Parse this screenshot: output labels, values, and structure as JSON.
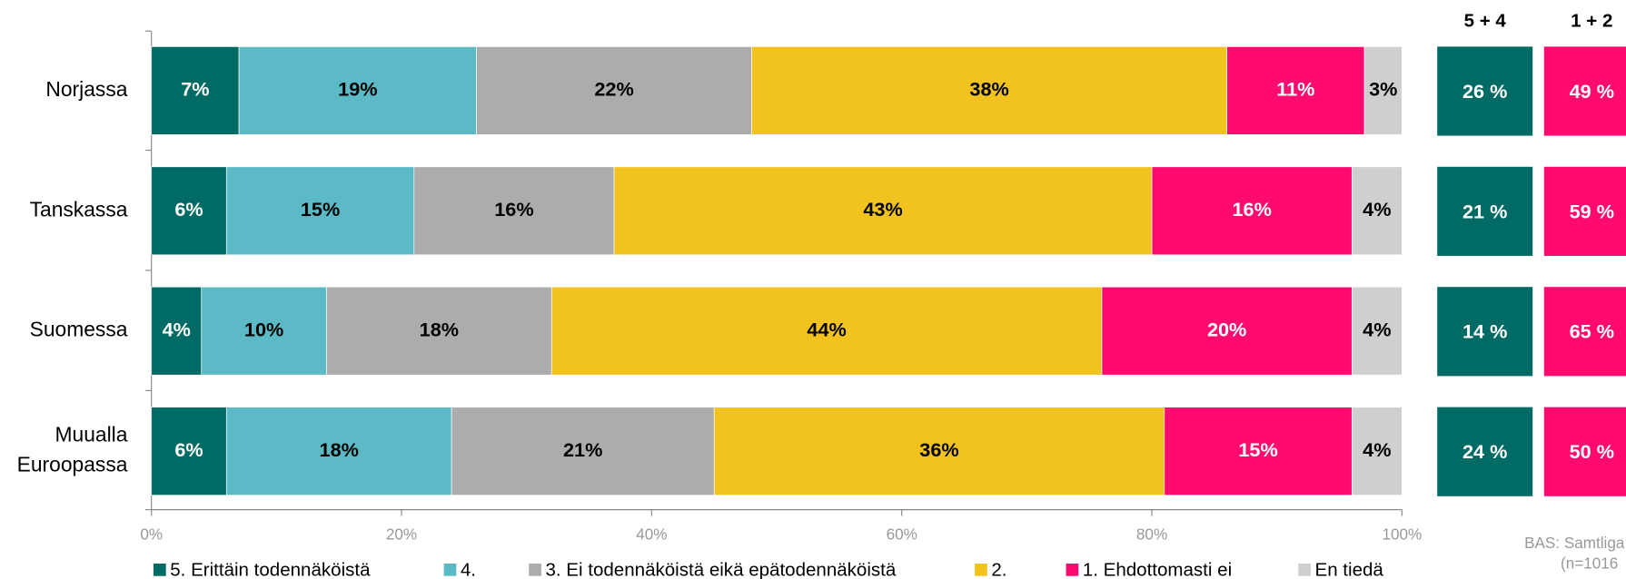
{
  "chart_data": {
    "type": "stacked-barh",
    "categories": [
      "Norjassa",
      "Tanskassa",
      "Suomessa",
      "Muualla Euroopassa"
    ],
    "series": [
      {
        "name": "5. Erittäin todennäköistä",
        "color": "#006a64",
        "label_color": "#ffffff",
        "values": [
          7,
          6,
          4,
          6
        ],
        "value_labels": [
          "7%",
          "6%",
          "4%",
          "6%"
        ]
      },
      {
        "name": "4.",
        "color": "#5cbac6",
        "label_color": "#000000",
        "values": [
          19,
          15,
          10,
          18
        ],
        "value_labels": [
          "19%",
          "15%",
          "10%",
          "18%"
        ]
      },
      {
        "name": "3. Ei todennäköistä eikä epätodennäköistä",
        "color": "#acacac",
        "label_color": "#000000",
        "values": [
          22,
          16,
          18,
          21
        ],
        "value_labels": [
          "22%",
          "16%",
          "18%",
          "21%"
        ]
      },
      {
        "name": "2.",
        "color": "#f2c31e",
        "label_color": "#000000",
        "values": [
          38,
          43,
          44,
          36
        ],
        "value_labels": [
          "38%",
          "43%",
          "44%",
          "36%"
        ]
      },
      {
        "name": "1. Ehdottomasti ei",
        "color": "#ff0a6e",
        "label_color": "#ffffff",
        "values": [
          11,
          16,
          20,
          15
        ],
        "value_labels": [
          "11%",
          "16%",
          "20%",
          "15%"
        ]
      },
      {
        "name": "En tiedä",
        "color": "#cfcfcf",
        "label_color": "#000000",
        "values": [
          3,
          4,
          4,
          4
        ],
        "value_labels": [
          "3%",
          "4%",
          "4%",
          "4%"
        ]
      }
    ],
    "xlim": [
      0,
      100
    ],
    "xticks": [
      {
        "value": 0,
        "label": "0%"
      },
      {
        "value": 20,
        "label": "20%"
      },
      {
        "value": 40,
        "label": "40%"
      },
      {
        "value": 60,
        "label": "60%"
      },
      {
        "value": 80,
        "label": "80%"
      },
      {
        "value": 100,
        "label": "100%"
      }
    ],
    "sums": [
      {
        "name": "5 + 4",
        "color": "#006a64",
        "values": [
          26,
          21,
          14,
          24
        ],
        "value_labels": [
          "26 %",
          "21 %",
          "14 %",
          "24 %"
        ]
      },
      {
        "name": "1 + 2",
        "color": "#ff0a6e",
        "values": [
          49,
          59,
          65,
          50
        ],
        "value_labels": [
          "49 %",
          "59 %",
          "65 %",
          "50 %"
        ]
      }
    ],
    "footnote": [
      "BAS: Samtliga",
      "(n=1016"
    ]
  }
}
